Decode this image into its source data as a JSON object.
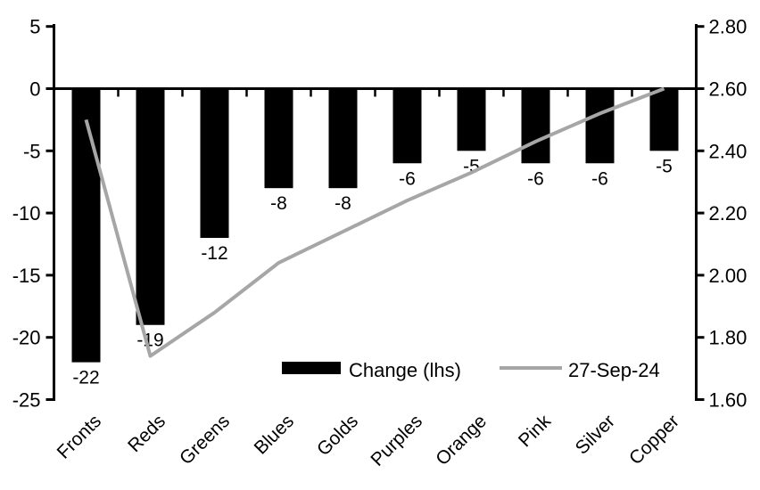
{
  "chart_data": {
    "type": "combo-bar-line",
    "title": "",
    "categories": [
      "Fronts",
      "Reds",
      "Greens",
      "Blues",
      "Golds",
      "Purples",
      "Orange",
      "Pink",
      "Silver",
      "Copper"
    ],
    "series": [
      {
        "name": "Change (lhs)",
        "type": "bar",
        "axis": "left",
        "color": "#000000",
        "values": [
          -22,
          -19,
          -12,
          -8,
          -8,
          -6,
          -5,
          -6,
          -6,
          -5
        ],
        "data_labels": true
      },
      {
        "name": "27-Sep-24",
        "type": "line",
        "axis": "right",
        "color": "#a6a6a6",
        "values": [
          2.5,
          1.74,
          1.88,
          2.04,
          2.14,
          2.24,
          2.33,
          2.43,
          2.52,
          2.6
        ],
        "data_labels": false
      }
    ],
    "left_axis": {
      "min": -25,
      "max": 5,
      "ticks": [
        {
          "label": "5",
          "value": 5
        },
        {
          "label": "0",
          "value": 0
        },
        {
          "label": "-5",
          "value": -5
        },
        {
          "label": "-10",
          "value": -10
        },
        {
          "label": "-15",
          "value": -15
        },
        {
          "label": "-20",
          "value": -20
        },
        {
          "label": "-25",
          "value": -25
        }
      ]
    },
    "right_axis": {
      "min": 1.6,
      "max": 2.8,
      "ticks": [
        {
          "label": "2.80",
          "value": 2.8
        },
        {
          "label": "2.60",
          "value": 2.6
        },
        {
          "label": "2.40",
          "value": 2.4
        },
        {
          "label": "2.20",
          "value": 2.2
        },
        {
          "label": "2.00",
          "value": 2.0
        },
        {
          "label": "1.80",
          "value": 1.8
        },
        {
          "label": "1.60",
          "value": 1.6
        }
      ]
    },
    "legend": {
      "position": "bottom-inside",
      "entries": [
        {
          "label": "Change (lhs)",
          "swatch": "bar",
          "color": "#000000"
        },
        {
          "label": "27-Sep-24",
          "swatch": "line",
          "color": "#a6a6a6"
        }
      ]
    },
    "grid": false,
    "background": "#ffffff",
    "axis_color": "#000000"
  }
}
